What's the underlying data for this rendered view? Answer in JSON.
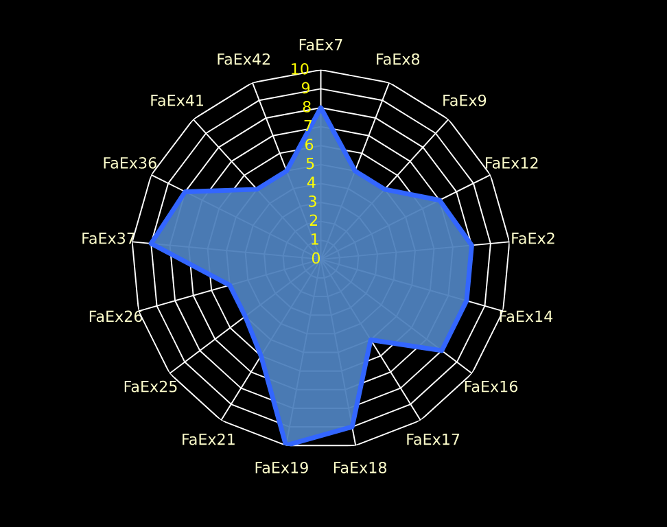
{
  "chart_data": {
    "type": "radar",
    "categories": [
      "FaEx7",
      "FaEx8",
      "FaEx9",
      "FaEx12",
      "FaEx2",
      "FaEx14",
      "FaEx16",
      "FaEx17",
      "FaEx18",
      "FaEx19",
      "FaEx21",
      "FaEx25",
      "FaEx26",
      "FaEx37",
      "FaEx36",
      "FaEx41",
      "FaEx42"
    ],
    "series": [
      {
        "color": "#3366ff",
        "values": [
          8,
          5,
          5,
          7,
          8,
          8,
          8,
          5,
          9,
          10,
          6,
          5,
          5,
          9,
          8,
          5,
          5
        ]
      }
    ],
    "ylim": [
      0,
      10
    ],
    "yticks": [
      0,
      1,
      2,
      3,
      4,
      5,
      6,
      7,
      8,
      9,
      10
    ],
    "grid": true
  }
}
